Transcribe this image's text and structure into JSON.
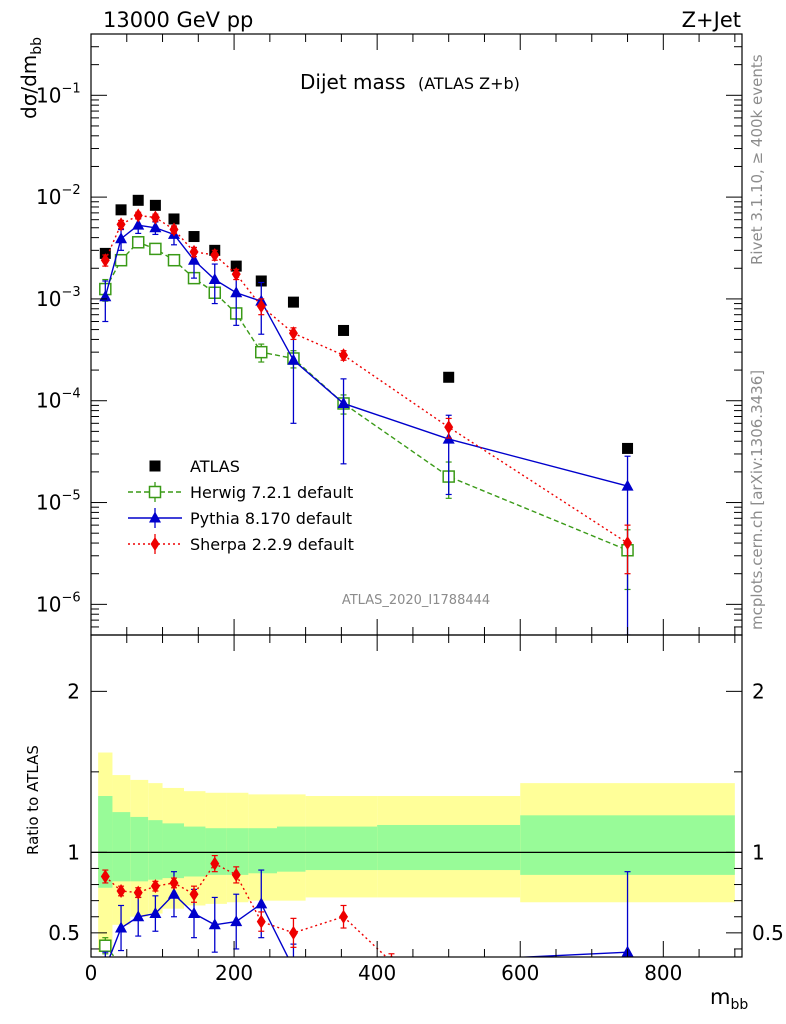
{
  "header": {
    "energy_label": "13000 GeV pp",
    "process_label": "Z+Jet"
  },
  "side": {
    "rivet_label": "Rivet 3.1.10, ≥ 400k events",
    "mcplots_label": "mcplots.cern.ch [arXiv:1306.3436]"
  },
  "chart_data": [
    {
      "type": "scatter",
      "title": "Dijet mass",
      "subtitle": "(ATLAS Z+b)",
      "ylabel": "dσ/dm",
      "ylabel_sub": "bb",
      "xlabel": "m",
      "xlabel_sub": "bb",
      "analysis_id": "ATLAS_2020_I1788444",
      "yscale": "log",
      "xlim": [
        0,
        910
      ],
      "ylim": [
        5e-07,
        0.4
      ],
      "y_ticks": [
        {
          "label": "10",
          "exp": "−1",
          "value": 0.1
        },
        {
          "label": "10",
          "exp": "−2",
          "value": 0.01
        },
        {
          "label": "10",
          "exp": "−3",
          "value": 0.001
        },
        {
          "label": "10",
          "exp": "−4",
          "value": 0.0001
        },
        {
          "label": "10",
          "exp": "−5",
          "value": 1e-05
        },
        {
          "label": "10",
          "exp": "−6",
          "value": 1e-06
        }
      ],
      "legend_position": "bottom-left",
      "series": [
        {
          "name": "ATLAS",
          "color": "#000000",
          "marker": "square-filled",
          "line": "none",
          "x": [
            20,
            42,
            66,
            90,
            116,
            144,
            173,
            203,
            238,
            283,
            353,
            500,
            750
          ],
          "y": [
            0.0028,
            0.0075,
            0.0093,
            0.0083,
            0.0061,
            0.0041,
            0.003,
            0.0021,
            0.0015,
            0.00093,
            0.00049,
            0.00017,
            3.4e-05
          ],
          "err": [
            0,
            0,
            0,
            0,
            0,
            0,
            0,
            0,
            0,
            0,
            0,
            0,
            0
          ]
        },
        {
          "name": "Herwig 7.2.1 default",
          "color": "#3a9a17",
          "marker": "square-open",
          "line": "dashed",
          "x": [
            20,
            42,
            66,
            90,
            116,
            144,
            173,
            203,
            238,
            283,
            353,
            500,
            750
          ],
          "y": [
            0.00125,
            0.0024,
            0.0036,
            0.0031,
            0.0024,
            0.0016,
            0.00115,
            0.00072,
            0.0003,
            0.00026,
            9.4e-05,
            1.8e-05,
            3.4e-06
          ],
          "err": [
            0.0003,
            0.0002,
            0.0002,
            0.0002,
            0.0002,
            0.0001,
            0.0001,
            8e-05,
            6e-05,
            5e-05,
            2e-05,
            7e-06,
            2e-06
          ]
        },
        {
          "name": "Pythia 8.170 default",
          "color": "#0000cc",
          "marker": "triangle-filled",
          "line": "solid",
          "x": [
            20,
            42,
            66,
            90,
            116,
            144,
            173,
            203,
            238,
            283,
            353,
            500,
            750
          ],
          "y": [
            0.00105,
            0.0039,
            0.0053,
            0.005,
            0.0043,
            0.0024,
            0.00155,
            0.00115,
            0.00095,
            0.00025,
            9.4e-05,
            4.2e-05,
            1.45e-05
          ],
          "err": [
            0.00045,
            0.0009,
            0.0009,
            0.0007,
            0.0009,
            0.0008,
            0.00065,
            0.0006,
            0.0005,
            0.00019,
            7e-05,
            3e-05,
            1.4e-05
          ]
        },
        {
          "name": "Sherpa 2.2.9 default",
          "color": "#ee0000",
          "marker": "diamond-filled",
          "line": "dotted",
          "x": [
            20,
            42,
            66,
            90,
            116,
            144,
            173,
            203,
            238,
            283,
            353,
            500,
            750
          ],
          "y": [
            0.0024,
            0.0054,
            0.0066,
            0.0063,
            0.0048,
            0.0029,
            0.0027,
            0.00175,
            0.00085,
            0.00046,
            0.00028,
            5.5e-05,
            4e-06
          ],
          "err": [
            0.0003,
            0.0005,
            0.0005,
            0.0005,
            0.0004,
            0.0003,
            0.0003,
            0.0002,
            0.00015,
            6e-05,
            3e-05,
            1.2e-05,
            2e-06
          ]
        }
      ]
    },
    {
      "type": "scatter",
      "ylabel": "Ratio to ATLAS",
      "xlim": [
        0,
        910
      ],
      "ylim": [
        0.35,
        2.35
      ],
      "x_ticks": [
        0,
        200,
        400,
        600,
        800
      ],
      "y_ticks": [
        0.5,
        1,
        2
      ],
      "reference_line": 1,
      "uncertainty_bands": [
        {
          "x0": 10,
          "x1": 30,
          "inner": [
            0.78,
            1.35
          ],
          "outer": [
            0.38,
            1.62
          ]
        },
        {
          "x0": 30,
          "x1": 55,
          "inner": [
            0.82,
            1.25
          ],
          "outer": [
            0.55,
            1.48
          ]
        },
        {
          "x0": 55,
          "x1": 80,
          "inner": [
            0.82,
            1.22
          ],
          "outer": [
            0.6,
            1.45
          ]
        },
        {
          "x0": 80,
          "x1": 100,
          "inner": [
            0.83,
            1.2
          ],
          "outer": [
            0.62,
            1.43
          ]
        },
        {
          "x0": 100,
          "x1": 130,
          "inner": [
            0.84,
            1.18
          ],
          "outer": [
            0.65,
            1.4
          ]
        },
        {
          "x0": 130,
          "x1": 160,
          "inner": [
            0.85,
            1.16
          ],
          "outer": [
            0.67,
            1.38
          ]
        },
        {
          "x0": 160,
          "x1": 190,
          "inner": [
            0.86,
            1.15
          ],
          "outer": [
            0.68,
            1.37
          ]
        },
        {
          "x0": 190,
          "x1": 220,
          "inner": [
            0.86,
            1.15
          ],
          "outer": [
            0.69,
            1.37
          ]
        },
        {
          "x0": 220,
          "x1": 260,
          "inner": [
            0.87,
            1.15
          ],
          "outer": [
            0.7,
            1.36
          ]
        },
        {
          "x0": 260,
          "x1": 300,
          "inner": [
            0.88,
            1.16
          ],
          "outer": [
            0.7,
            1.36
          ]
        },
        {
          "x0": 300,
          "x1": 400,
          "inner": [
            0.89,
            1.16
          ],
          "outer": [
            0.72,
            1.35
          ]
        },
        {
          "x0": 400,
          "x1": 600,
          "inner": [
            0.89,
            1.17
          ],
          "outer": [
            0.72,
            1.35
          ]
        },
        {
          "x0": 600,
          "x1": 900,
          "inner": [
            0.86,
            1.23
          ],
          "outer": [
            0.69,
            1.43
          ]
        }
      ],
      "band_colors": {
        "inner": "#98fb98",
        "outer": "#ffff99"
      },
      "series": [
        {
          "name": "Herwig 7.2.1 default",
          "color": "#3a9a17",
          "marker": "square-open",
          "line": "dashed",
          "x": [
            20,
            42
          ],
          "y": [
            0.42,
            0.3
          ],
          "err": [
            0.05,
            0.03
          ]
        },
        {
          "name": "Pythia 8.170 default",
          "color": "#0000cc",
          "marker": "triangle-filled",
          "line": "solid",
          "x": [
            20,
            42,
            66,
            90,
            116,
            144,
            173,
            203,
            238,
            283,
            750
          ],
          "y": [
            0.28,
            0.53,
            0.6,
            0.62,
            0.74,
            0.62,
            0.55,
            0.57,
            0.68,
            0.28,
            0.38
          ],
          "err": [
            0.1,
            0.14,
            0.12,
            0.11,
            0.14,
            0.15,
            0.17,
            0.17,
            0.21,
            0.15,
            0.5
          ]
        },
        {
          "name": "Sherpa 2.2.9 default",
          "color": "#ee0000",
          "marker": "diamond-filled",
          "line": "dotted",
          "x": [
            20,
            42,
            66,
            90,
            116,
            144,
            173,
            203,
            238,
            283,
            353,
            420
          ],
          "y": [
            0.85,
            0.76,
            0.75,
            0.79,
            0.81,
            0.74,
            0.93,
            0.86,
            0.57,
            0.5,
            0.6,
            0.32
          ],
          "err": [
            0.04,
            0.03,
            0.03,
            0.03,
            0.03,
            0.05,
            0.05,
            0.05,
            0.06,
            0.09,
            0.07,
            0.05
          ]
        }
      ]
    }
  ]
}
